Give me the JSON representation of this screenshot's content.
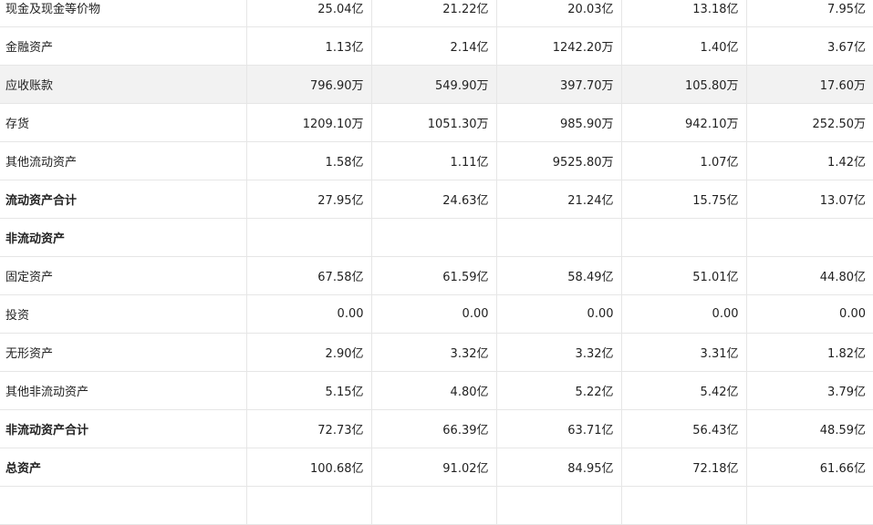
{
  "balance_sheet": {
    "rows": [
      {
        "label": "现金及现金等价物",
        "bold": false,
        "highlight": false,
        "values": [
          "25.04亿",
          "21.22亿",
          "20.03亿",
          "13.18亿",
          "7.95亿"
        ]
      },
      {
        "label": "金融资产",
        "bold": false,
        "highlight": false,
        "values": [
          "1.13亿",
          "2.14亿",
          "1242.20万",
          "1.40亿",
          "3.67亿"
        ]
      },
      {
        "label": "应收账款",
        "bold": false,
        "highlight": true,
        "values": [
          "796.90万",
          "549.90万",
          "397.70万",
          "105.80万",
          "17.60万"
        ]
      },
      {
        "label": "存货",
        "bold": false,
        "highlight": false,
        "values": [
          "1209.10万",
          "1051.30万",
          "985.90万",
          "942.10万",
          "252.50万"
        ]
      },
      {
        "label": "其他流动资产",
        "bold": false,
        "highlight": false,
        "values": [
          "1.58亿",
          "1.11亿",
          "9525.80万",
          "1.07亿",
          "1.42亿"
        ]
      },
      {
        "label": "流动资产合计",
        "bold": true,
        "highlight": false,
        "values": [
          "27.95亿",
          "24.63亿",
          "21.24亿",
          "15.75亿",
          "13.07亿"
        ]
      },
      {
        "label": "非流动资产",
        "bold": true,
        "highlight": false,
        "values": [
          "",
          "",
          "",
          "",
          ""
        ]
      },
      {
        "label": "固定资产",
        "bold": false,
        "highlight": false,
        "values": [
          "67.58亿",
          "61.59亿",
          "58.49亿",
          "51.01亿",
          "44.80亿"
        ]
      },
      {
        "label": "投资",
        "bold": false,
        "highlight": false,
        "values": [
          "0.00",
          "0.00",
          "0.00",
          "0.00",
          "0.00"
        ]
      },
      {
        "label": "无形资产",
        "bold": false,
        "highlight": false,
        "values": [
          "2.90亿",
          "3.32亿",
          "3.32亿",
          "3.31亿",
          "1.82亿"
        ]
      },
      {
        "label": "其他非流动资产",
        "bold": false,
        "highlight": false,
        "values": [
          "5.15亿",
          "4.80亿",
          "5.22亿",
          "5.42亿",
          "3.79亿"
        ]
      },
      {
        "label": "非流动资产合计",
        "bold": true,
        "highlight": false,
        "values": [
          "72.73亿",
          "66.39亿",
          "63.71亿",
          "56.43亿",
          "48.59亿"
        ]
      },
      {
        "label": "总资产",
        "bold": true,
        "highlight": false,
        "values": [
          "100.68亿",
          "91.02亿",
          "84.95亿",
          "72.18亿",
          "61.66亿"
        ]
      },
      {
        "label": "",
        "bold": false,
        "highlight": false,
        "values": [
          "",
          "",
          "",
          "",
          ""
        ]
      }
    ]
  }
}
